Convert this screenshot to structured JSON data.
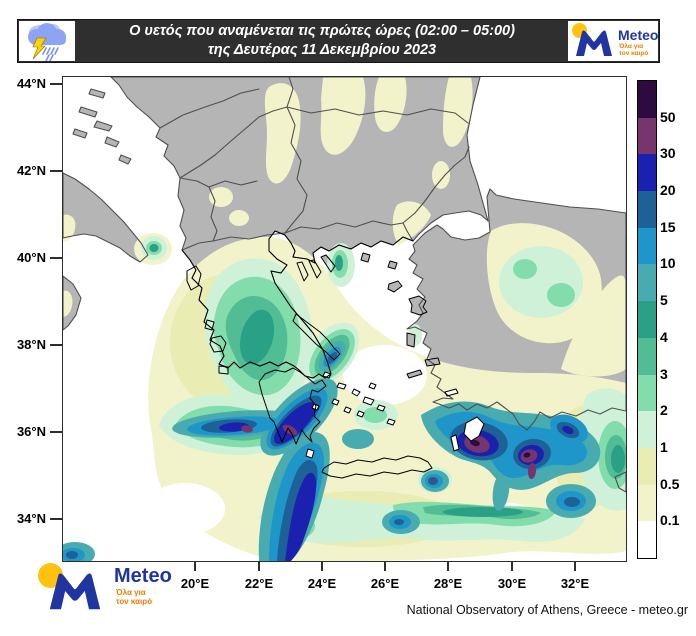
{
  "header": {
    "title_line1": "Ο υετός που αναμένεται τις πρώτες ώρες (02:00 – 05:00)",
    "title_line2": "της Δευτέρας 11 Δεκεμβρίου 2023"
  },
  "logo": {
    "name": "Meteo",
    "tagline_line1": "Όλα για",
    "tagline_line2": "τον καιρό"
  },
  "icons": {
    "header_left": "storm-cloud-icon",
    "header_right": "meteo-logo",
    "bottom_left": "meteo-logo"
  },
  "axes": {
    "lat_labels": [
      "44°N",
      "42°N",
      "40°N",
      "38°N",
      "36°N",
      "34°N"
    ],
    "lon_labels": [
      "20°E",
      "22°E",
      "24°E",
      "26°E",
      "28°E",
      "30°E",
      "32°E"
    ]
  },
  "colorbar": {
    "labels": [
      "50",
      "30",
      "20",
      "15",
      "10",
      "5",
      "4",
      "3",
      "2",
      "1",
      "0.5",
      "0.1"
    ],
    "segment_colors_top_to_bottom": [
      "#2d0b40",
      "#76356c",
      "#1b20ae",
      "#1d6196",
      "#1f96ca",
      "#48abaf",
      "#2aa086",
      "#52bc95",
      "#83dcab",
      "#cff1d7",
      "#e9ecb3",
      "#f2f3cb",
      "#ffffff"
    ]
  },
  "map": {
    "sea_color": "#ffffff",
    "land_color": "#b5b5b5",
    "border_color": "#4f4f4f",
    "coast_color": "#000000",
    "levels": {
      "l01": "#f2f3cb",
      "l05": "#e9ecb3",
      "l1": "#cff1d7",
      "l2": "#83dcab",
      "l3": "#52bc95",
      "l4": "#2aa086",
      "l5": "#48abaf",
      "l10": "#1f96ca",
      "l15": "#1d6196",
      "l20": "#1b20ae",
      "l30": "#76356c",
      "l50": "#2d0b40"
    }
  },
  "attribution": "National Observatory of Athens, Greece - meteo.gr"
}
